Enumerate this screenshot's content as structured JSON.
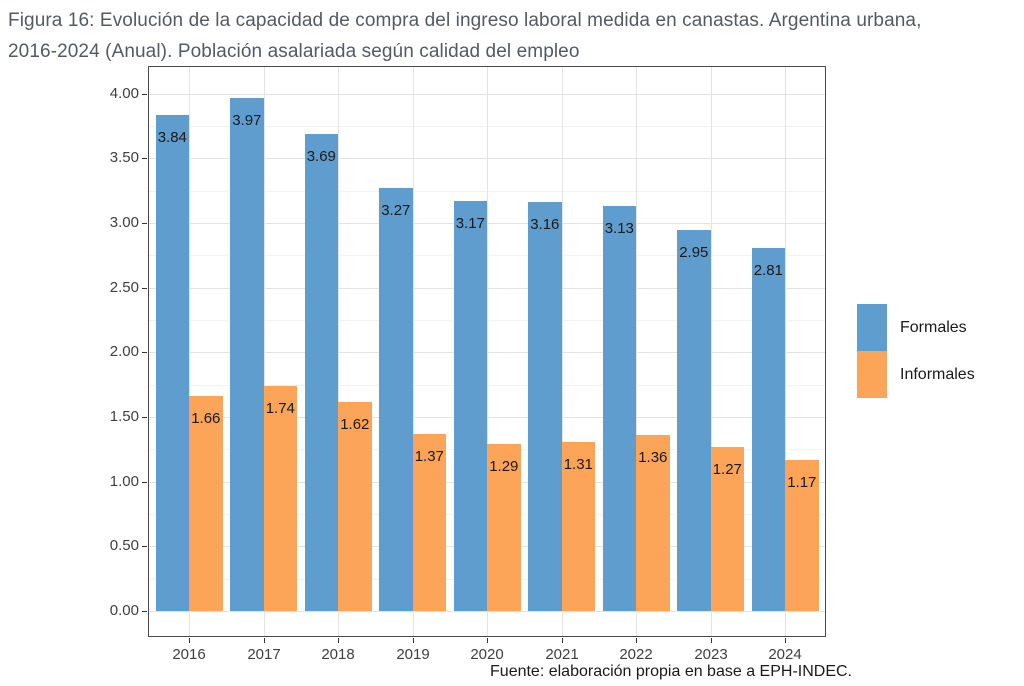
{
  "title": {
    "line1": "Figura 16: Evolución de la capacidad de compra del ingreso laboral medida en canastas. Argentina urbana,",
    "line2": "2016-2024 (Anual). Población asalariada según calidad del empleo"
  },
  "source_text": "Fuente: elaboración propia en base a EPH-INDEC.",
  "colors": {
    "formales": "#5F9DCE",
    "informales": "#FCA457",
    "grid_major": "#e3e3e3",
    "grid_minor": "#f2f2f2",
    "panel_border": "#4a4a4a",
    "axis_tick": "#333333",
    "axis_text": "#404040",
    "title_text": "#555a61",
    "value_label_text": "#1a1a1a"
  },
  "chart_data": {
    "type": "bar",
    "title": "Figura 16: Evolución de la capacidad de compra del ingreso laboral medida en canastas. Argentina urbana, 2016-2024 (Anual). Población asalariada según calidad del empleo",
    "categories": [
      "2016",
      "2017",
      "2018",
      "2019",
      "2020",
      "2021",
      "2022",
      "2023",
      "2024"
    ],
    "series": [
      {
        "name": "Formales",
        "color_key": "formales",
        "values": [
          3.84,
          3.97,
          3.69,
          3.27,
          3.17,
          3.16,
          3.13,
          2.95,
          2.81
        ]
      },
      {
        "name": "Informales",
        "color_key": "informales",
        "values": [
          1.66,
          1.74,
          1.62,
          1.37,
          1.29,
          1.31,
          1.36,
          1.27,
          1.17
        ]
      }
    ],
    "xlabel": "",
    "ylabel": "",
    "ylim": [
      0,
      4.0
    ],
    "y_ticks": [
      "0.00",
      "0.50",
      "1.00",
      "1.50",
      "2.00",
      "2.50",
      "3.00",
      "3.50",
      "4.00"
    ],
    "y_minor_breaks": [
      0.25,
      0.75,
      1.25,
      1.75,
      2.25,
      2.75,
      3.25,
      3.75
    ],
    "grid": true,
    "legend_position": "right",
    "bar_value_labels": true,
    "value_label_format": "2dp"
  }
}
